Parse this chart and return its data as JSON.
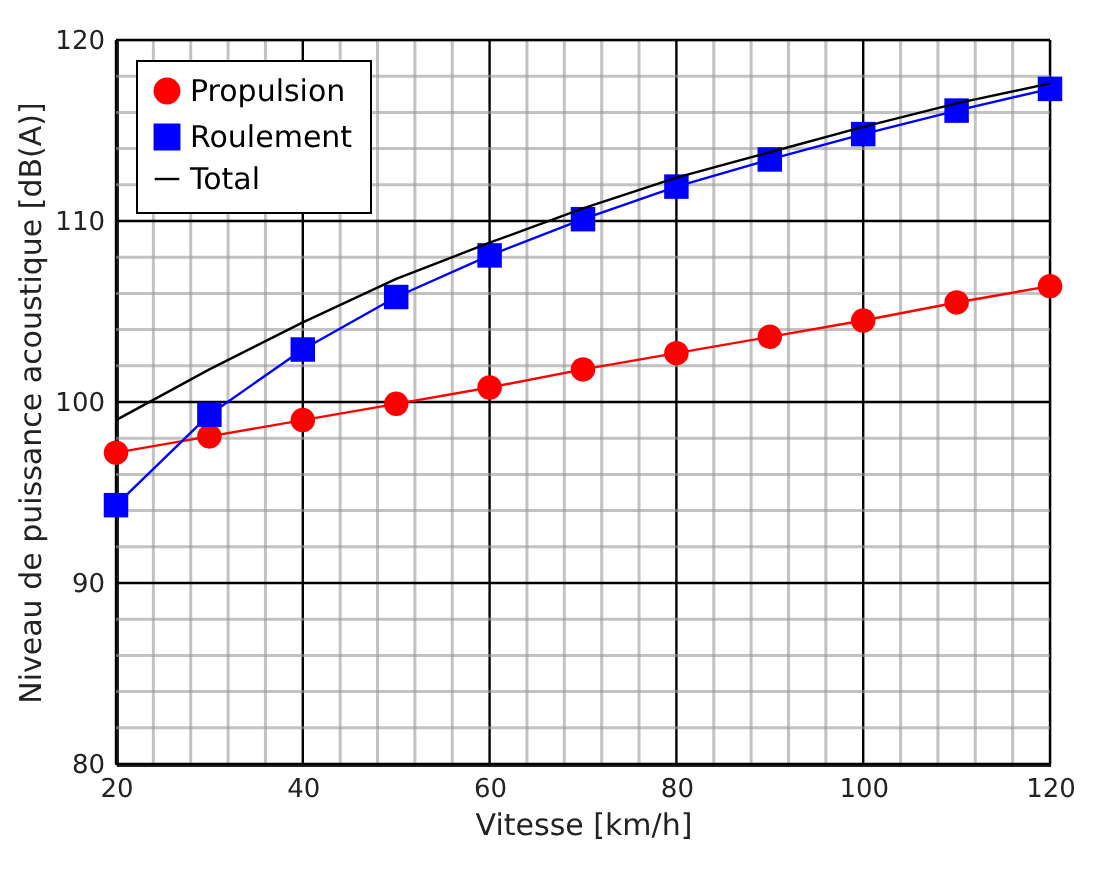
{
  "chart_data": {
    "type": "line",
    "xlabel": "Vitesse [km/h]",
    "ylabel": "Niveau de puissance acoustique [dB(A)]",
    "x": [
      20,
      30,
      40,
      50,
      60,
      70,
      80,
      90,
      100,
      110,
      120
    ],
    "series": [
      {
        "name": "Propulsion",
        "color": "#ff0000",
        "marker": "circle",
        "values": [
          97.2,
          98.1,
          99.0,
          99.9,
          100.8,
          101.8,
          102.7,
          103.6,
          104.5,
          105.5,
          106.4
        ]
      },
      {
        "name": "Roulement",
        "color": "#0000ff",
        "marker": "square",
        "values": [
          94.3,
          99.3,
          102.9,
          105.8,
          108.1,
          110.1,
          111.9,
          113.4,
          114.8,
          116.1,
          117.3
        ]
      },
      {
        "name": "Total",
        "color": "#000000",
        "marker": "none",
        "values": [
          99.0,
          101.8,
          104.4,
          106.8,
          108.8,
          110.7,
          112.4,
          113.8,
          115.2,
          116.5,
          117.6
        ]
      }
    ],
    "xlim": [
      20,
      120
    ],
    "ylim": [
      80,
      120
    ],
    "xticks": [
      20,
      {
        "value": 24,
        "label": null
      },
      {
        "value": 28,
        "label": null
      },
      {
        "value": 32,
        "label": null
      },
      {
        "value": 36,
        "label": null
      },
      40,
      {
        "value": 44,
        "label": null
      },
      {
        "value": 48,
        "label": null
      },
      {
        "value": 52,
        "label": null
      },
      {
        "value": 56,
        "label": null
      },
      60,
      {
        "value": 64,
        "label": null
      },
      {
        "value": 68,
        "label": null
      },
      {
        "value": 72,
        "label": null
      },
      {
        "value": 76,
        "label": null
      },
      80,
      {
        "value": 84,
        "label": null
      },
      {
        "value": 88,
        "label": null
      },
      {
        "value": 92,
        "label": null
      },
      {
        "value": 96,
        "label": null
      },
      100,
      {
        "value": 104,
        "label": null
      },
      {
        "value": 108,
        "label": null
      },
      {
        "value": 112,
        "label": null
      },
      {
        "value": 116,
        "label": null
      },
      120
    ],
    "yticks": [
      80,
      {
        "value": 82,
        "label": null
      },
      {
        "value": 84,
        "label": null
      },
      {
        "value": 86,
        "label": null
      },
      {
        "value": 88,
        "label": null
      },
      90,
      {
        "value": 92,
        "label": null
      },
      {
        "value": 94,
        "label": null
      },
      {
        "value": 96,
        "label": null
      },
      {
        "value": 98,
        "label": null
      },
      100,
      {
        "value": 102,
        "label": null
      },
      {
        "value": 104,
        "label": null
      },
      {
        "value": 106,
        "label": null
      },
      {
        "value": 108,
        "label": null
      },
      110,
      {
        "value": 112,
        "label": null
      },
      {
        "value": 114,
        "label": null
      },
      {
        "value": 116,
        "label": null
      },
      {
        "value": 118,
        "label": null
      },
      120
    ],
    "grid": true,
    "legend": "top left",
    "line_style": "solid"
  }
}
